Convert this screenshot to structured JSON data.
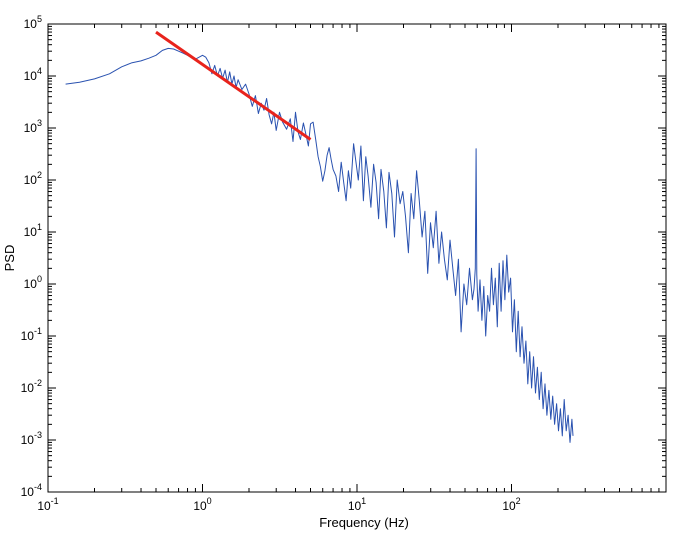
{
  "chart_data": {
    "type": "line",
    "title": "",
    "xlabel": "Frequency (Hz)",
    "ylabel": "PSD",
    "x_scale": "log",
    "y_scale": "log",
    "xlim": [
      0.1,
      1000
    ],
    "ylim": [
      0.0001,
      100000
    ],
    "x_ticks": [
      {
        "value": 0.1,
        "base": "10",
        "exp": "-1"
      },
      {
        "value": 1,
        "base": "10",
        "exp": "0"
      },
      {
        "value": 10,
        "base": "10",
        "exp": "1"
      },
      {
        "value": 100,
        "base": "10",
        "exp": "2"
      }
    ],
    "y_ticks": [
      {
        "value": 0.0001,
        "base": "10",
        "exp": "-4"
      },
      {
        "value": 0.001,
        "base": "10",
        "exp": "-3"
      },
      {
        "value": 0.01,
        "base": "10",
        "exp": "-2"
      },
      {
        "value": 0.1,
        "base": "10",
        "exp": "-1"
      },
      {
        "value": 1,
        "base": "10",
        "exp": "0"
      },
      {
        "value": 10,
        "base": "10",
        "exp": "1"
      },
      {
        "value": 100,
        "base": "10",
        "exp": "2"
      },
      {
        "value": 1000,
        "base": "10",
        "exp": "3"
      },
      {
        "value": 10000,
        "base": "10",
        "exp": "4"
      },
      {
        "value": 100000,
        "base": "10",
        "exp": "5"
      }
    ],
    "grid": false,
    "legend": "none",
    "series": [
      {
        "color": "#2a52b0",
        "points": [
          [
            0.13,
            7000
          ],
          [
            0.16,
            7600
          ],
          [
            0.2,
            8800
          ],
          [
            0.25,
            11000
          ],
          [
            0.3,
            15000
          ],
          [
            0.35,
            18000
          ],
          [
            0.4,
            19500
          ],
          [
            0.45,
            22000
          ],
          [
            0.5,
            25000
          ],
          [
            0.55,
            31000
          ],
          [
            0.6,
            34000
          ],
          [
            0.65,
            33000
          ],
          [
            0.7,
            30000
          ],
          [
            0.75,
            27500
          ],
          [
            0.8,
            25000
          ],
          [
            0.85,
            22500
          ],
          [
            0.9,
            21000
          ],
          [
            0.95,
            23000
          ],
          [
            1.0,
            25000
          ],
          [
            1.05,
            23000
          ],
          [
            1.1,
            18000
          ],
          [
            1.15,
            11000
          ],
          [
            1.2,
            16000
          ],
          [
            1.25,
            10000
          ],
          [
            1.3,
            14000
          ],
          [
            1.35,
            9000
          ],
          [
            1.4,
            13000
          ],
          [
            1.45,
            7500
          ],
          [
            1.5,
            12000
          ],
          [
            1.55,
            7000
          ],
          [
            1.6,
            10000
          ],
          [
            1.65,
            6000
          ],
          [
            1.7,
            8500
          ],
          [
            1.8,
            5500
          ],
          [
            1.9,
            7000
          ],
          [
            2.0,
            4500
          ],
          [
            2.1,
            2600
          ],
          [
            2.2,
            4200
          ],
          [
            2.3,
            1900
          ],
          [
            2.4,
            3000
          ],
          [
            2.5,
            2200
          ],
          [
            2.6,
            3700
          ],
          [
            2.7,
            1800
          ],
          [
            2.8,
            1200
          ],
          [
            2.9,
            2000
          ],
          [
            3.0,
            900
          ],
          [
            3.15,
            2000
          ],
          [
            3.3,
            1300
          ],
          [
            3.5,
            950
          ],
          [
            3.7,
            1500
          ],
          [
            3.85,
            550
          ],
          [
            4.0,
            2000
          ],
          [
            4.15,
            850
          ],
          [
            4.3,
            600
          ],
          [
            4.5,
            1250
          ],
          [
            4.7,
            700
          ],
          [
            4.85,
            450
          ],
          [
            5.0,
            1200
          ],
          [
            5.2,
            1300
          ],
          [
            5.4,
            600
          ],
          [
            5.6,
            280
          ],
          [
            5.8,
            180
          ],
          [
            6.0,
            95
          ],
          [
            6.2,
            150
          ],
          [
            6.4,
            300
          ],
          [
            6.6,
            420
          ],
          [
            6.8,
            250
          ],
          [
            7.0,
            160
          ],
          [
            7.3,
            120
          ],
          [
            7.6,
            60
          ],
          [
            7.9,
            220
          ],
          [
            8.2,
            90
          ],
          [
            8.5,
            40
          ],
          [
            8.8,
            150
          ],
          [
            9.1,
            70
          ],
          [
            9.5,
            500
          ],
          [
            9.8,
            250
          ],
          [
            10.2,
            100
          ],
          [
            10.6,
            450
          ],
          [
            11.0,
            40
          ],
          [
            11.4,
            280
          ],
          [
            11.8,
            120
          ],
          [
            12.3,
            30
          ],
          [
            12.8,
            200
          ],
          [
            13.3,
            90
          ],
          [
            13.8,
            18
          ],
          [
            14.3,
            160
          ],
          [
            14.9,
            60
          ],
          [
            15.5,
            12
          ],
          [
            16.1,
            140
          ],
          [
            16.8,
            55
          ],
          [
            17.5,
            8
          ],
          [
            18.2,
            100
          ],
          [
            19.0,
            35
          ],
          [
            19.8,
            60
          ],
          [
            20.6,
            20
          ],
          [
            21.5,
            4
          ],
          [
            22.4,
            55
          ],
          [
            23.3,
            18
          ],
          [
            24.3,
            150
          ],
          [
            25.3,
            40
          ],
          [
            26.4,
            8
          ],
          [
            27.5,
            25
          ],
          [
            28.7,
            1.6
          ],
          [
            29.9,
            15
          ],
          [
            31.2,
            5
          ],
          [
            32.5,
            25
          ],
          [
            33.9,
            2.5
          ],
          [
            35.3,
            10
          ],
          [
            36.8,
            3
          ],
          [
            38.4,
            1.2
          ],
          [
            40.0,
            7
          ],
          [
            41.7,
            2
          ],
          [
            43.5,
            0.6
          ],
          [
            45.3,
            3
          ],
          [
            47.2,
            0.12
          ],
          [
            49.2,
            1
          ],
          [
            51.3,
            0.4
          ],
          [
            53.5,
            2
          ],
          [
            55.8,
            0.5
          ],
          [
            57.2,
            0.8
          ],
          [
            58.3,
            2
          ],
          [
            59.0,
            400
          ],
          [
            59.6,
            1.5
          ],
          [
            60.8,
            0.3
          ],
          [
            62.5,
            1.2
          ],
          [
            64.3,
            0.2
          ],
          [
            66.2,
            0.9
          ],
          [
            68.1,
            0.1
          ],
          [
            70.1,
            0.6
          ],
          [
            72.1,
            0.3
          ],
          [
            74.2,
            2
          ],
          [
            76.4,
            0.4
          ],
          [
            78.6,
            1.3
          ],
          [
            80.9,
            0.15
          ],
          [
            83.2,
            2.5
          ],
          [
            85.6,
            0.3
          ],
          [
            88.1,
            2.8
          ],
          [
            90.6,
            0.5
          ],
          [
            93.2,
            3.6
          ],
          [
            95.9,
            0.7
          ],
          [
            98.7,
            1.3
          ],
          [
            101.5,
            0.12
          ],
          [
            104.4,
            0.5
          ],
          [
            107.4,
            0.05
          ],
          [
            110.5,
            0.3
          ],
          [
            113.7,
            0.04
          ],
          [
            117.0,
            0.15
          ],
          [
            120.4,
            0.03
          ],
          [
            123.9,
            0.08
          ],
          [
            127.5,
            0.012
          ],
          [
            131.2,
            0.05
          ],
          [
            135.0,
            0.01
          ],
          [
            138.9,
            0.04
          ],
          [
            142.9,
            0.008
          ],
          [
            147.0,
            0.025
          ],
          [
            151.3,
            0.006
          ],
          [
            155.7,
            0.02
          ],
          [
            160.2,
            0.004
          ],
          [
            164.8,
            0.012
          ],
          [
            169.6,
            0.003
          ],
          [
            174.5,
            0.009
          ],
          [
            179.6,
            0.0025
          ],
          [
            184.8,
            0.007
          ],
          [
            190.2,
            0.002
          ],
          [
            195.7,
            0.005
          ],
          [
            201.4,
            0.0015
          ],
          [
            207.2,
            0.004
          ],
          [
            213.2,
            0.0012
          ],
          [
            219.4,
            0.006
          ],
          [
            225.8,
            0.0015
          ],
          [
            232.4,
            0.003
          ],
          [
            239.1,
            0.0009
          ],
          [
            246.0,
            0.0025
          ],
          [
            250.0,
            0.0012
          ]
        ]
      },
      {
        "color": "#e8231c",
        "points": [
          [
            0.5,
            70000
          ],
          [
            5.0,
            600
          ]
        ]
      }
    ]
  }
}
